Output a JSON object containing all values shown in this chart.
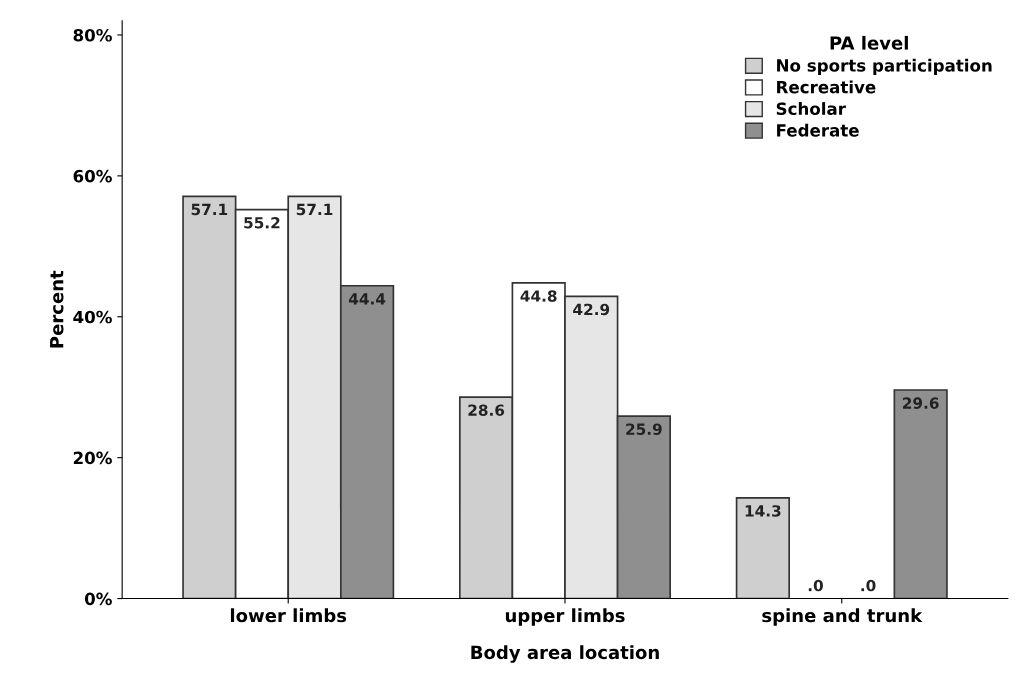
{
  "chart_data": {
    "type": "bar",
    "xlabel": "Body area location",
    "ylabel": "Percent",
    "legend_title": "PA level",
    "categories": [
      "lower limbs",
      "upper limbs",
      "spine and trunk"
    ],
    "series": [
      {
        "name": "No sports participation",
        "color": "#cfcfcf",
        "values": [
          57.1,
          28.6,
          14.3
        ],
        "value_labels": [
          "57.1",
          "28.6",
          "14.3"
        ]
      },
      {
        "name": "Recreative",
        "color": "#ffffff",
        "values": [
          55.2,
          44.8,
          0
        ],
        "value_labels": [
          "55.2",
          "44.8",
          ".0"
        ]
      },
      {
        "name": "Scholar",
        "color": "#e6e6e6",
        "values": [
          57.1,
          42.9,
          0
        ],
        "value_labels": [
          "57.1",
          "42.9",
          ".0"
        ]
      },
      {
        "name": "Federate",
        "color": "#8f8f8f",
        "values": [
          44.4,
          25.9,
          29.6
        ],
        "value_labels": [
          "44.4",
          "25.9",
          "29.6"
        ]
      }
    ],
    "ylim": [
      0,
      82
    ],
    "yticks": [
      {
        "value": 0,
        "label": "0%"
      },
      {
        "value": 20,
        "label": "20%"
      },
      {
        "value": 40,
        "label": "40%"
      },
      {
        "value": 60,
        "label": "60%"
      },
      {
        "value": 80,
        "label": "80%"
      }
    ],
    "grid": false,
    "legend": "top right"
  }
}
